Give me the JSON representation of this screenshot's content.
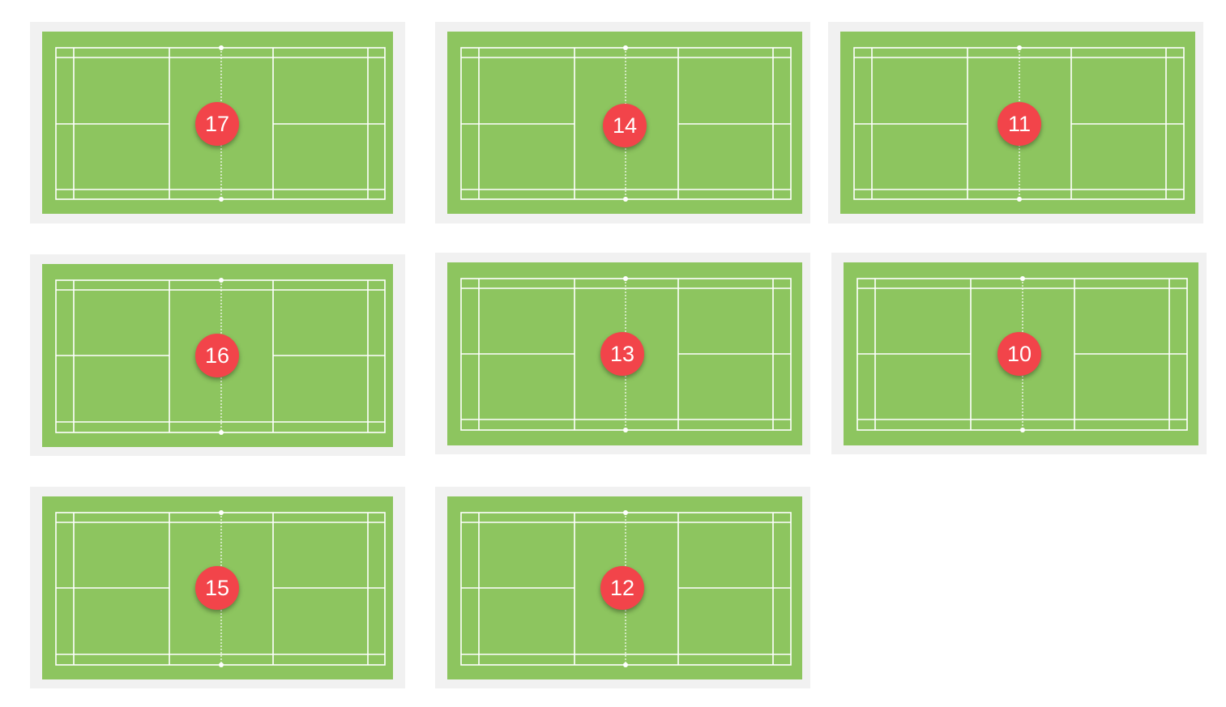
{
  "courts": [
    {
      "number": "17"
    },
    {
      "number": "14"
    },
    {
      "number": "11"
    },
    {
      "number": "16"
    },
    {
      "number": "13"
    },
    {
      "number": "10"
    },
    {
      "number": "15"
    },
    {
      "number": "12"
    }
  ],
  "colors": {
    "card": "#f1f1f1",
    "field": "#8dc55f",
    "lines": "#ffffff",
    "badge": "#f2444a"
  }
}
